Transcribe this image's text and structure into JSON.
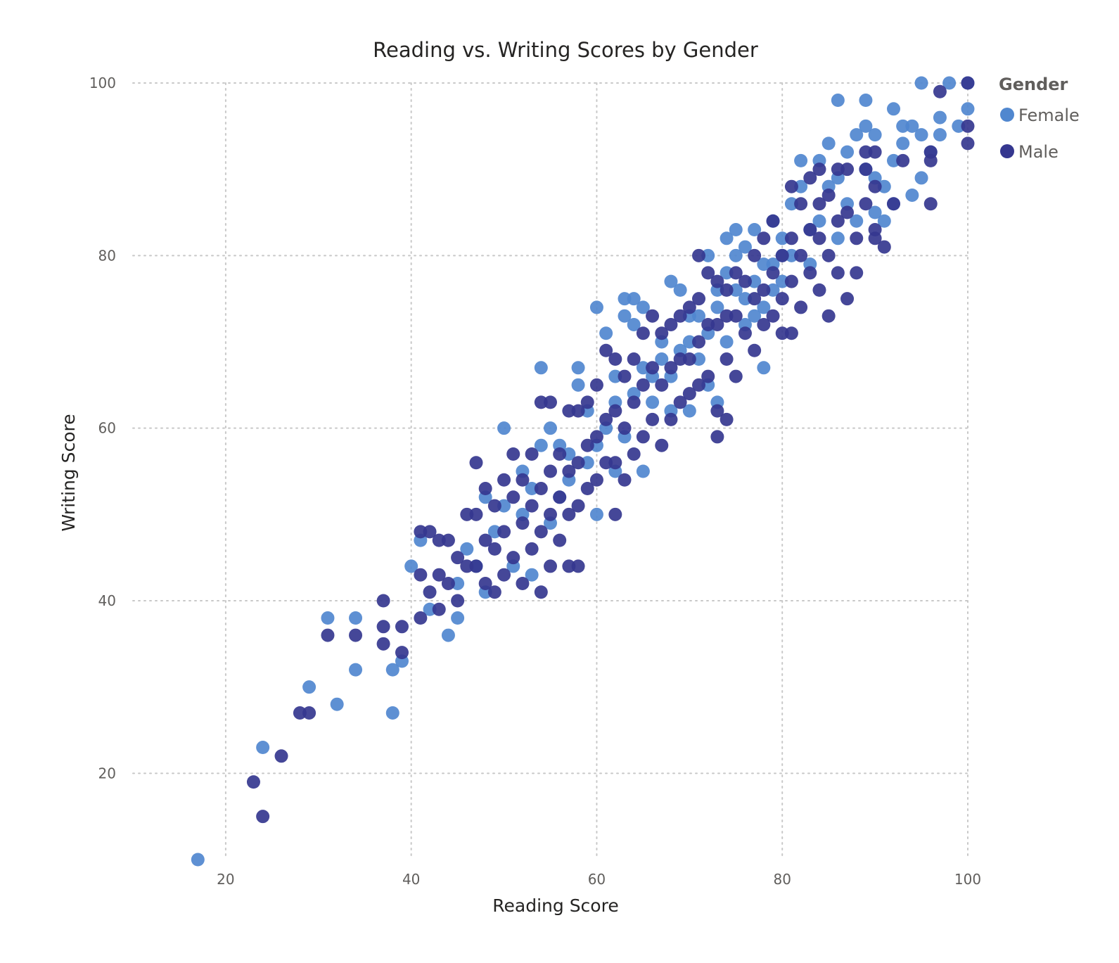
{
  "chart_data": {
    "type": "scatter",
    "title": "Reading vs. Writing Scores by Gender",
    "xlabel": "Reading Score",
    "ylabel": "Writing Score",
    "xlim": [
      10,
      100
    ],
    "ylim": [
      10,
      100
    ],
    "xticks": [
      20,
      40,
      60,
      80,
      100
    ],
    "yticks": [
      20,
      40,
      60,
      80,
      100
    ],
    "grid": true,
    "legend": {
      "title": "Gender",
      "position": "top-right"
    },
    "series": [
      {
        "name": "Female",
        "color": "#5087cf",
        "points": [
          [
            17,
            10
          ],
          [
            24,
            23
          ],
          [
            29,
            30
          ],
          [
            31,
            38
          ],
          [
            32,
            28
          ],
          [
            34,
            38
          ],
          [
            34,
            32
          ],
          [
            38,
            27
          ],
          [
            38,
            32
          ],
          [
            39,
            33
          ],
          [
            40,
            44
          ],
          [
            41,
            47
          ],
          [
            42,
            39
          ],
          [
            44,
            36
          ],
          [
            45,
            38
          ],
          [
            46,
            46
          ],
          [
            48,
            41
          ],
          [
            49,
            48
          ],
          [
            50,
            60
          ],
          [
            50,
            51
          ],
          [
            51,
            44
          ],
          [
            52,
            55
          ],
          [
            53,
            43
          ],
          [
            54,
            58
          ],
          [
            54,
            67
          ],
          [
            55,
            60
          ],
          [
            56,
            58
          ],
          [
            57,
            54
          ],
          [
            58,
            67
          ],
          [
            58,
            65
          ],
          [
            59,
            62
          ],
          [
            60,
            74
          ],
          [
            60,
            50
          ],
          [
            61,
            71
          ],
          [
            62,
            66
          ],
          [
            62,
            55
          ],
          [
            63,
            75
          ],
          [
            63,
            73
          ],
          [
            64,
            75
          ],
          [
            64,
            72
          ],
          [
            65,
            74
          ],
          [
            65,
            55
          ],
          [
            66,
            63
          ],
          [
            67,
            70
          ],
          [
            68,
            77
          ],
          [
            68,
            62
          ],
          [
            69,
            76
          ],
          [
            70,
            70
          ],
          [
            70,
            62
          ],
          [
            71,
            73
          ],
          [
            72,
            80
          ],
          [
            72,
            65
          ],
          [
            73,
            76
          ],
          [
            73,
            63
          ],
          [
            74,
            78
          ],
          [
            74,
            82
          ],
          [
            75,
            83
          ],
          [
            75,
            80
          ],
          [
            76,
            81
          ],
          [
            76,
            72
          ],
          [
            77,
            77
          ],
          [
            77,
            83
          ],
          [
            78,
            74
          ],
          [
            78,
            67
          ],
          [
            79,
            79
          ],
          [
            79,
            84
          ],
          [
            80,
            82
          ],
          [
            80,
            77
          ],
          [
            81,
            86
          ],
          [
            81,
            80
          ],
          [
            82,
            91
          ],
          [
            82,
            88
          ],
          [
            83,
            83
          ],
          [
            83,
            79
          ],
          [
            84,
            91
          ],
          [
            84,
            84
          ],
          [
            85,
            93
          ],
          [
            85,
            88
          ],
          [
            86,
            89
          ],
          [
            86,
            82
          ],
          [
            86,
            98
          ],
          [
            87,
            92
          ],
          [
            87,
            86
          ],
          [
            88,
            94
          ],
          [
            88,
            84
          ],
          [
            89,
            95
          ],
          [
            89,
            90
          ],
          [
            89,
            98
          ],
          [
            90,
            94
          ],
          [
            90,
            89
          ],
          [
            90,
            85
          ],
          [
            91,
            88
          ],
          [
            91,
            84
          ],
          [
            92,
            97
          ],
          [
            92,
            91
          ],
          [
            92,
            86
          ],
          [
            93,
            95
          ],
          [
            93,
            93
          ],
          [
            94,
            95
          ],
          [
            94,
            87
          ],
          [
            95,
            94
          ],
          [
            95,
            89
          ],
          [
            95,
            100
          ],
          [
            96,
            92
          ],
          [
            97,
            96
          ],
          [
            97,
            94
          ],
          [
            98,
            100
          ],
          [
            99,
            95
          ],
          [
            100,
            97
          ],
          [
            100,
            100
          ],
          [
            45,
            42
          ],
          [
            47,
            44
          ],
          [
            48,
            52
          ],
          [
            52,
            50
          ],
          [
            53,
            53
          ],
          [
            55,
            49
          ],
          [
            56,
            52
          ],
          [
            57,
            57
          ],
          [
            59,
            56
          ],
          [
            60,
            58
          ],
          [
            61,
            60
          ],
          [
            62,
            63
          ],
          [
            63,
            59
          ],
          [
            64,
            64
          ],
          [
            65,
            67
          ],
          [
            66,
            66
          ],
          [
            67,
            68
          ],
          [
            68,
            66
          ],
          [
            69,
            69
          ],
          [
            70,
            73
          ],
          [
            71,
            68
          ],
          [
            72,
            71
          ],
          [
            73,
            74
          ],
          [
            74,
            70
          ],
          [
            75,
            76
          ],
          [
            76,
            75
          ],
          [
            77,
            73
          ],
          [
            78,
            79
          ],
          [
            79,
            76
          ],
          [
            80,
            80
          ]
        ]
      },
      {
        "name": "Male",
        "color": "#35378f",
        "points": [
          [
            23,
            19
          ],
          [
            24,
            15
          ],
          [
            26,
            22
          ],
          [
            28,
            27
          ],
          [
            29,
            27
          ],
          [
            31,
            36
          ],
          [
            34,
            36
          ],
          [
            37,
            40
          ],
          [
            37,
            37
          ],
          [
            37,
            35
          ],
          [
            39,
            37
          ],
          [
            39,
            34
          ],
          [
            41,
            48
          ],
          [
            41,
            43
          ],
          [
            41,
            38
          ],
          [
            42,
            48
          ],
          [
            42,
            41
          ],
          [
            43,
            47
          ],
          [
            43,
            43
          ],
          [
            43,
            39
          ],
          [
            44,
            47
          ],
          [
            44,
            42
          ],
          [
            45,
            45
          ],
          [
            45,
            40
          ],
          [
            46,
            50
          ],
          [
            46,
            44
          ],
          [
            47,
            56
          ],
          [
            47,
            50
          ],
          [
            47,
            44
          ],
          [
            48,
            53
          ],
          [
            48,
            47
          ],
          [
            48,
            42
          ],
          [
            49,
            51
          ],
          [
            49,
            46
          ],
          [
            49,
            41
          ],
          [
            50,
            54
          ],
          [
            50,
            48
          ],
          [
            50,
            43
          ],
          [
            51,
            57
          ],
          [
            51,
            52
          ],
          [
            51,
            45
          ],
          [
            52,
            54
          ],
          [
            52,
            49
          ],
          [
            52,
            42
          ],
          [
            53,
            57
          ],
          [
            53,
            51
          ],
          [
            53,
            46
          ],
          [
            54,
            63
          ],
          [
            54,
            53
          ],
          [
            54,
            48
          ],
          [
            54,
            41
          ],
          [
            55,
            63
          ],
          [
            55,
            55
          ],
          [
            55,
            50
          ],
          [
            55,
            44
          ],
          [
            56,
            57
          ],
          [
            56,
            52
          ],
          [
            56,
            47
          ],
          [
            57,
            62
          ],
          [
            57,
            55
          ],
          [
            57,
            50
          ],
          [
            57,
            44
          ],
          [
            58,
            62
          ],
          [
            58,
            56
          ],
          [
            58,
            51
          ],
          [
            58,
            44
          ],
          [
            59,
            63
          ],
          [
            59,
            58
          ],
          [
            59,
            53
          ],
          [
            60,
            65
          ],
          [
            60,
            59
          ],
          [
            60,
            54
          ],
          [
            61,
            69
          ],
          [
            61,
            61
          ],
          [
            61,
            56
          ],
          [
            62,
            68
          ],
          [
            62,
            62
          ],
          [
            62,
            56
          ],
          [
            62,
            50
          ],
          [
            63,
            66
          ],
          [
            63,
            60
          ],
          [
            63,
            54
          ],
          [
            64,
            68
          ],
          [
            64,
            63
          ],
          [
            64,
            57
          ],
          [
            65,
            71
          ],
          [
            65,
            65
          ],
          [
            65,
            59
          ],
          [
            66,
            73
          ],
          [
            66,
            67
          ],
          [
            66,
            61
          ],
          [
            67,
            71
          ],
          [
            67,
            65
          ],
          [
            67,
            58
          ],
          [
            68,
            72
          ],
          [
            68,
            67
          ],
          [
            68,
            61
          ],
          [
            69,
            73
          ],
          [
            69,
            68
          ],
          [
            69,
            63
          ],
          [
            70,
            74
          ],
          [
            70,
            68
          ],
          [
            70,
            64
          ],
          [
            71,
            80
          ],
          [
            71,
            75
          ],
          [
            71,
            70
          ],
          [
            71,
            65
          ],
          [
            72,
            78
          ],
          [
            72,
            72
          ],
          [
            72,
            66
          ],
          [
            73,
            77
          ],
          [
            73,
            72
          ],
          [
            73,
            62
          ],
          [
            73,
            59
          ],
          [
            74,
            76
          ],
          [
            74,
            73
          ],
          [
            74,
            68
          ],
          [
            74,
            61
          ],
          [
            75,
            78
          ],
          [
            75,
            73
          ],
          [
            75,
            66
          ],
          [
            76,
            77
          ],
          [
            76,
            71
          ],
          [
            77,
            80
          ],
          [
            77,
            75
          ],
          [
            77,
            69
          ],
          [
            78,
            82
          ],
          [
            78,
            76
          ],
          [
            78,
            72
          ],
          [
            79,
            84
          ],
          [
            79,
            78
          ],
          [
            79,
            73
          ],
          [
            80,
            80
          ],
          [
            80,
            75
          ],
          [
            80,
            71
          ],
          [
            81,
            88
          ],
          [
            81,
            82
          ],
          [
            81,
            77
          ],
          [
            81,
            71
          ],
          [
            82,
            86
          ],
          [
            82,
            80
          ],
          [
            82,
            74
          ],
          [
            83,
            89
          ],
          [
            83,
            83
          ],
          [
            83,
            78
          ],
          [
            84,
            90
          ],
          [
            84,
            86
          ],
          [
            84,
            82
          ],
          [
            84,
            76
          ],
          [
            85,
            87
          ],
          [
            85,
            80
          ],
          [
            85,
            73
          ],
          [
            86,
            90
          ],
          [
            86,
            84
          ],
          [
            86,
            78
          ],
          [
            87,
            90
          ],
          [
            87,
            85
          ],
          [
            87,
            75
          ],
          [
            88,
            82
          ],
          [
            88,
            78
          ],
          [
            89,
            92
          ],
          [
            89,
            90
          ],
          [
            89,
            86
          ],
          [
            90,
            92
          ],
          [
            90,
            88
          ],
          [
            90,
            83
          ],
          [
            90,
            82
          ],
          [
            91,
            81
          ],
          [
            92,
            86
          ],
          [
            93,
            91
          ],
          [
            96,
            92
          ],
          [
            96,
            91
          ],
          [
            96,
            86
          ],
          [
            97,
            99
          ],
          [
            100,
            95
          ],
          [
            100,
            93
          ],
          [
            100,
            100
          ]
        ]
      }
    ]
  }
}
